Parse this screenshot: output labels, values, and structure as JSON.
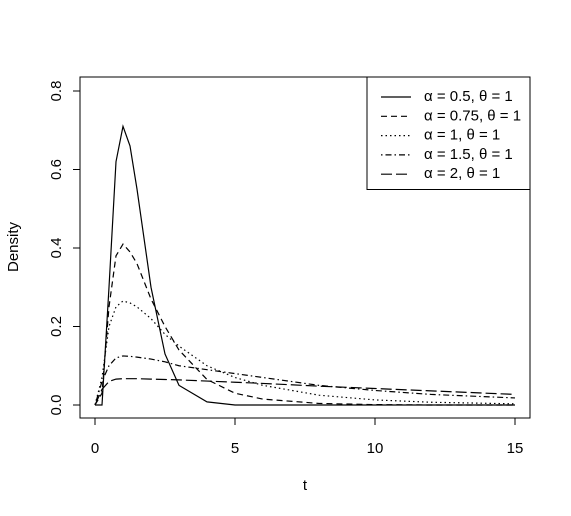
{
  "chart_data": {
    "type": "line",
    "x_label": "t",
    "y_label": "Density",
    "x": [
      0,
      0.25,
      0.5,
      0.75,
      1,
      1.25,
      1.5,
      2,
      2.5,
      3,
      4,
      5,
      6,
      8,
      10,
      12,
      15
    ],
    "series": [
      {
        "name": "α = 0.5, θ = 1",
        "color": "#000000",
        "line_style": "solid",
        "values": [
          0,
          0.0,
          0.3,
          0.62,
          0.71,
          0.66,
          0.55,
          0.3,
          0.13,
          0.05,
          0.008,
          0,
          0,
          0,
          0,
          0,
          0
        ]
      },
      {
        "name": "α = 0.75, θ = 1",
        "color": "#000000",
        "line_style": "dashed",
        "values": [
          0,
          0.03,
          0.25,
          0.38,
          0.41,
          0.39,
          0.36,
          0.27,
          0.2,
          0.14,
          0.065,
          0.03,
          0.015,
          0.004,
          0.001,
          0,
          0
        ]
      },
      {
        "name": "α = 1, θ = 1",
        "color": "#000000",
        "line_style": "dotted",
        "values": [
          0,
          0.07,
          0.2,
          0.25,
          0.265,
          0.26,
          0.25,
          0.22,
          0.18,
          0.15,
          0.1,
          0.07,
          0.05,
          0.025,
          0.013,
          0.007,
          0.003
        ]
      },
      {
        "name": "α = 1.5, θ = 1",
        "color": "#000000",
        "line_style": "dotdash",
        "values": [
          0,
          0.06,
          0.1,
          0.12,
          0.125,
          0.124,
          0.122,
          0.117,
          0.11,
          0.1,
          0.09,
          0.08,
          0.07,
          0.05,
          0.037,
          0.027,
          0.018
        ]
      },
      {
        "name": "α = 2, θ = 1",
        "color": "#000000",
        "line_style": "longdash",
        "values": [
          0,
          0.04,
          0.06,
          0.066,
          0.067,
          0.067,
          0.067,
          0.066,
          0.065,
          0.064,
          0.061,
          0.058,
          0.055,
          0.048,
          0.042,
          0.036,
          0.027
        ]
      }
    ],
    "xlim": [
      0,
      15
    ],
    "ylim": [
      0,
      0.8
    ],
    "xticks": [
      0,
      5,
      10,
      15
    ],
    "yticks": [
      {
        "value": 0,
        "label": "0.0"
      },
      0.2,
      0.4,
      0.6,
      0.8
    ],
    "legend_position": "top-right"
  }
}
